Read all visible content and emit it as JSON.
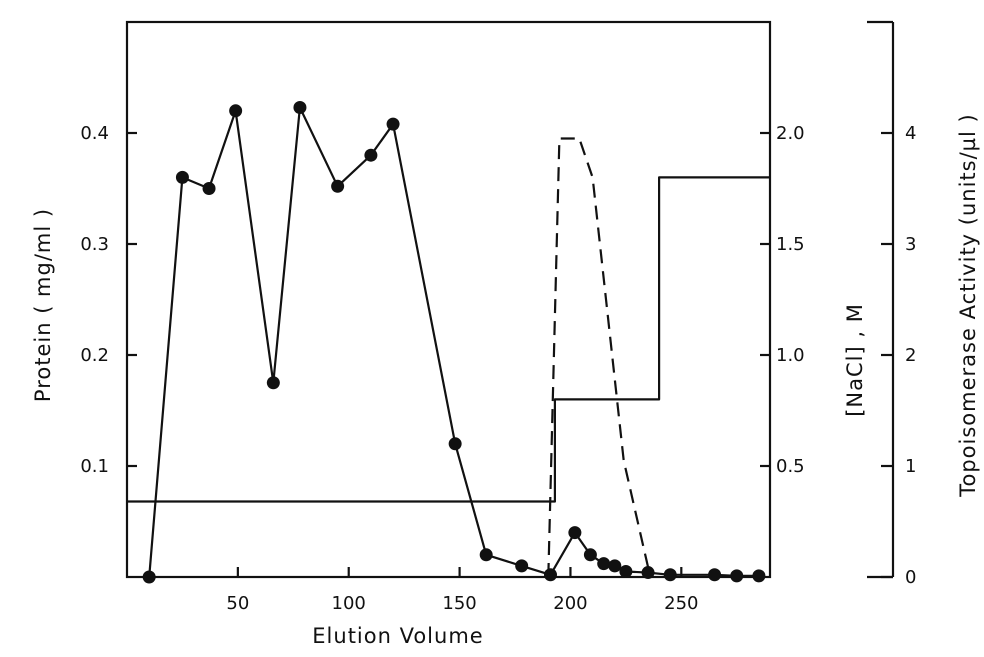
{
  "chart_data": {
    "type": "line",
    "xlabel": "Elution Volume",
    "ylabel_left": "Protein ( mg/ml )",
    "ylabel_right1": "[NaCl] , M",
    "ylabel_right2": "Topoisomerase Activity (units/µl )",
    "xlim": [
      0,
      290
    ],
    "ylim_left": [
      0,
      0.5
    ],
    "ylim_nacl": [
      0,
      2.5
    ],
    "ylim_activity": [
      0,
      5
    ],
    "x_ticks": [
      50,
      100,
      150,
      200,
      250
    ],
    "x_tick_labels": [
      "50",
      "100",
      "150",
      "200",
      "250"
    ],
    "left_ticks": [
      0.1,
      0.2,
      0.3,
      0.4
    ],
    "left_tick_labels": [
      "0.1",
      "0.2",
      "0.3",
      "0.4"
    ],
    "nacl_ticks": [
      0.5,
      1.0,
      1.5,
      2.0
    ],
    "nacl_tick_labels": [
      "0.5",
      "1.0",
      "1.5",
      "2.0"
    ],
    "activity_ticks": [
      0,
      1,
      2,
      3,
      4
    ],
    "activity_tick_labels": [
      "0",
      "1",
      "2",
      "3",
      "4"
    ],
    "series": [
      {
        "style": "solid-markers",
        "axis": "left",
        "x": [
          10,
          25,
          37,
          49,
          66,
          78,
          95,
          110,
          120,
          148,
          162,
          178,
          191,
          202,
          209,
          215,
          220,
          225,
          235,
          245,
          265,
          275,
          285
        ],
        "y": [
          0.0,
          0.36,
          0.35,
          0.42,
          0.175,
          0.423,
          0.352,
          0.38,
          0.408,
          0.12,
          0.02,
          0.01,
          0.002,
          0.04,
          0.02,
          0.012,
          0.01,
          0.005,
          0.004,
          0.002,
          0.002,
          0.001,
          0.001
        ]
      },
      {
        "style": "solid-step",
        "axis": "nacl",
        "x": [
          0,
          193,
          193,
          240,
          240,
          290
        ],
        "y": [
          0.34,
          0.34,
          0.8,
          0.8,
          1.8,
          1.8
        ]
      },
      {
        "style": "dashed",
        "axis": "activity",
        "x": [
          190,
          195,
          204,
          210,
          224,
          236
        ],
        "y": [
          0.0,
          3.95,
          3.95,
          3.6,
          1.05,
          0.0
        ]
      }
    ]
  }
}
